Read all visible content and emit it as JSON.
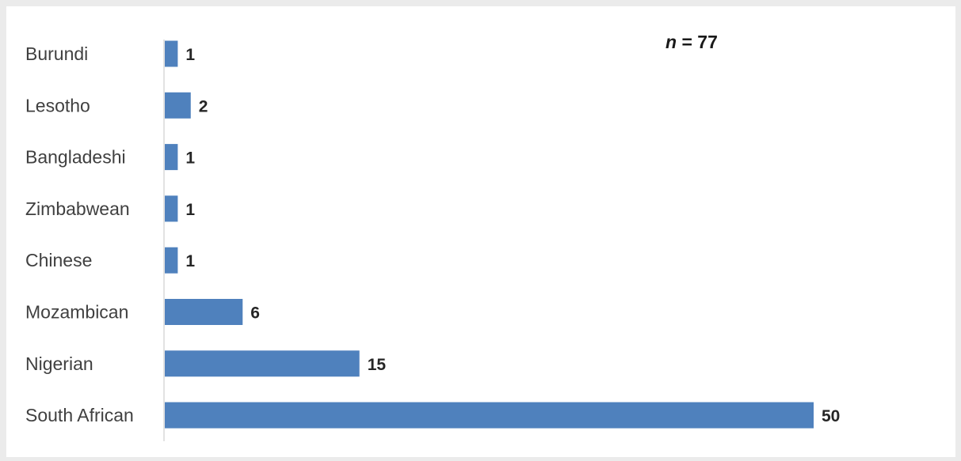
{
  "chart_data": {
    "type": "bar",
    "orientation": "horizontal",
    "categories": [
      "Burundi",
      "Lesotho",
      "Bangladeshi",
      "Zimbabwean",
      "Chinese",
      "Mozambican",
      "Nigerian",
      "South African"
    ],
    "values": [
      1,
      2,
      1,
      1,
      1,
      6,
      15,
      50
    ],
    "bar_color": "#4f81bd",
    "xlim": [
      0,
      50
    ],
    "grid": false,
    "data_labels": true,
    "annotation": {
      "symbol": "n",
      "equals": " = 77",
      "value": 77
    }
  }
}
